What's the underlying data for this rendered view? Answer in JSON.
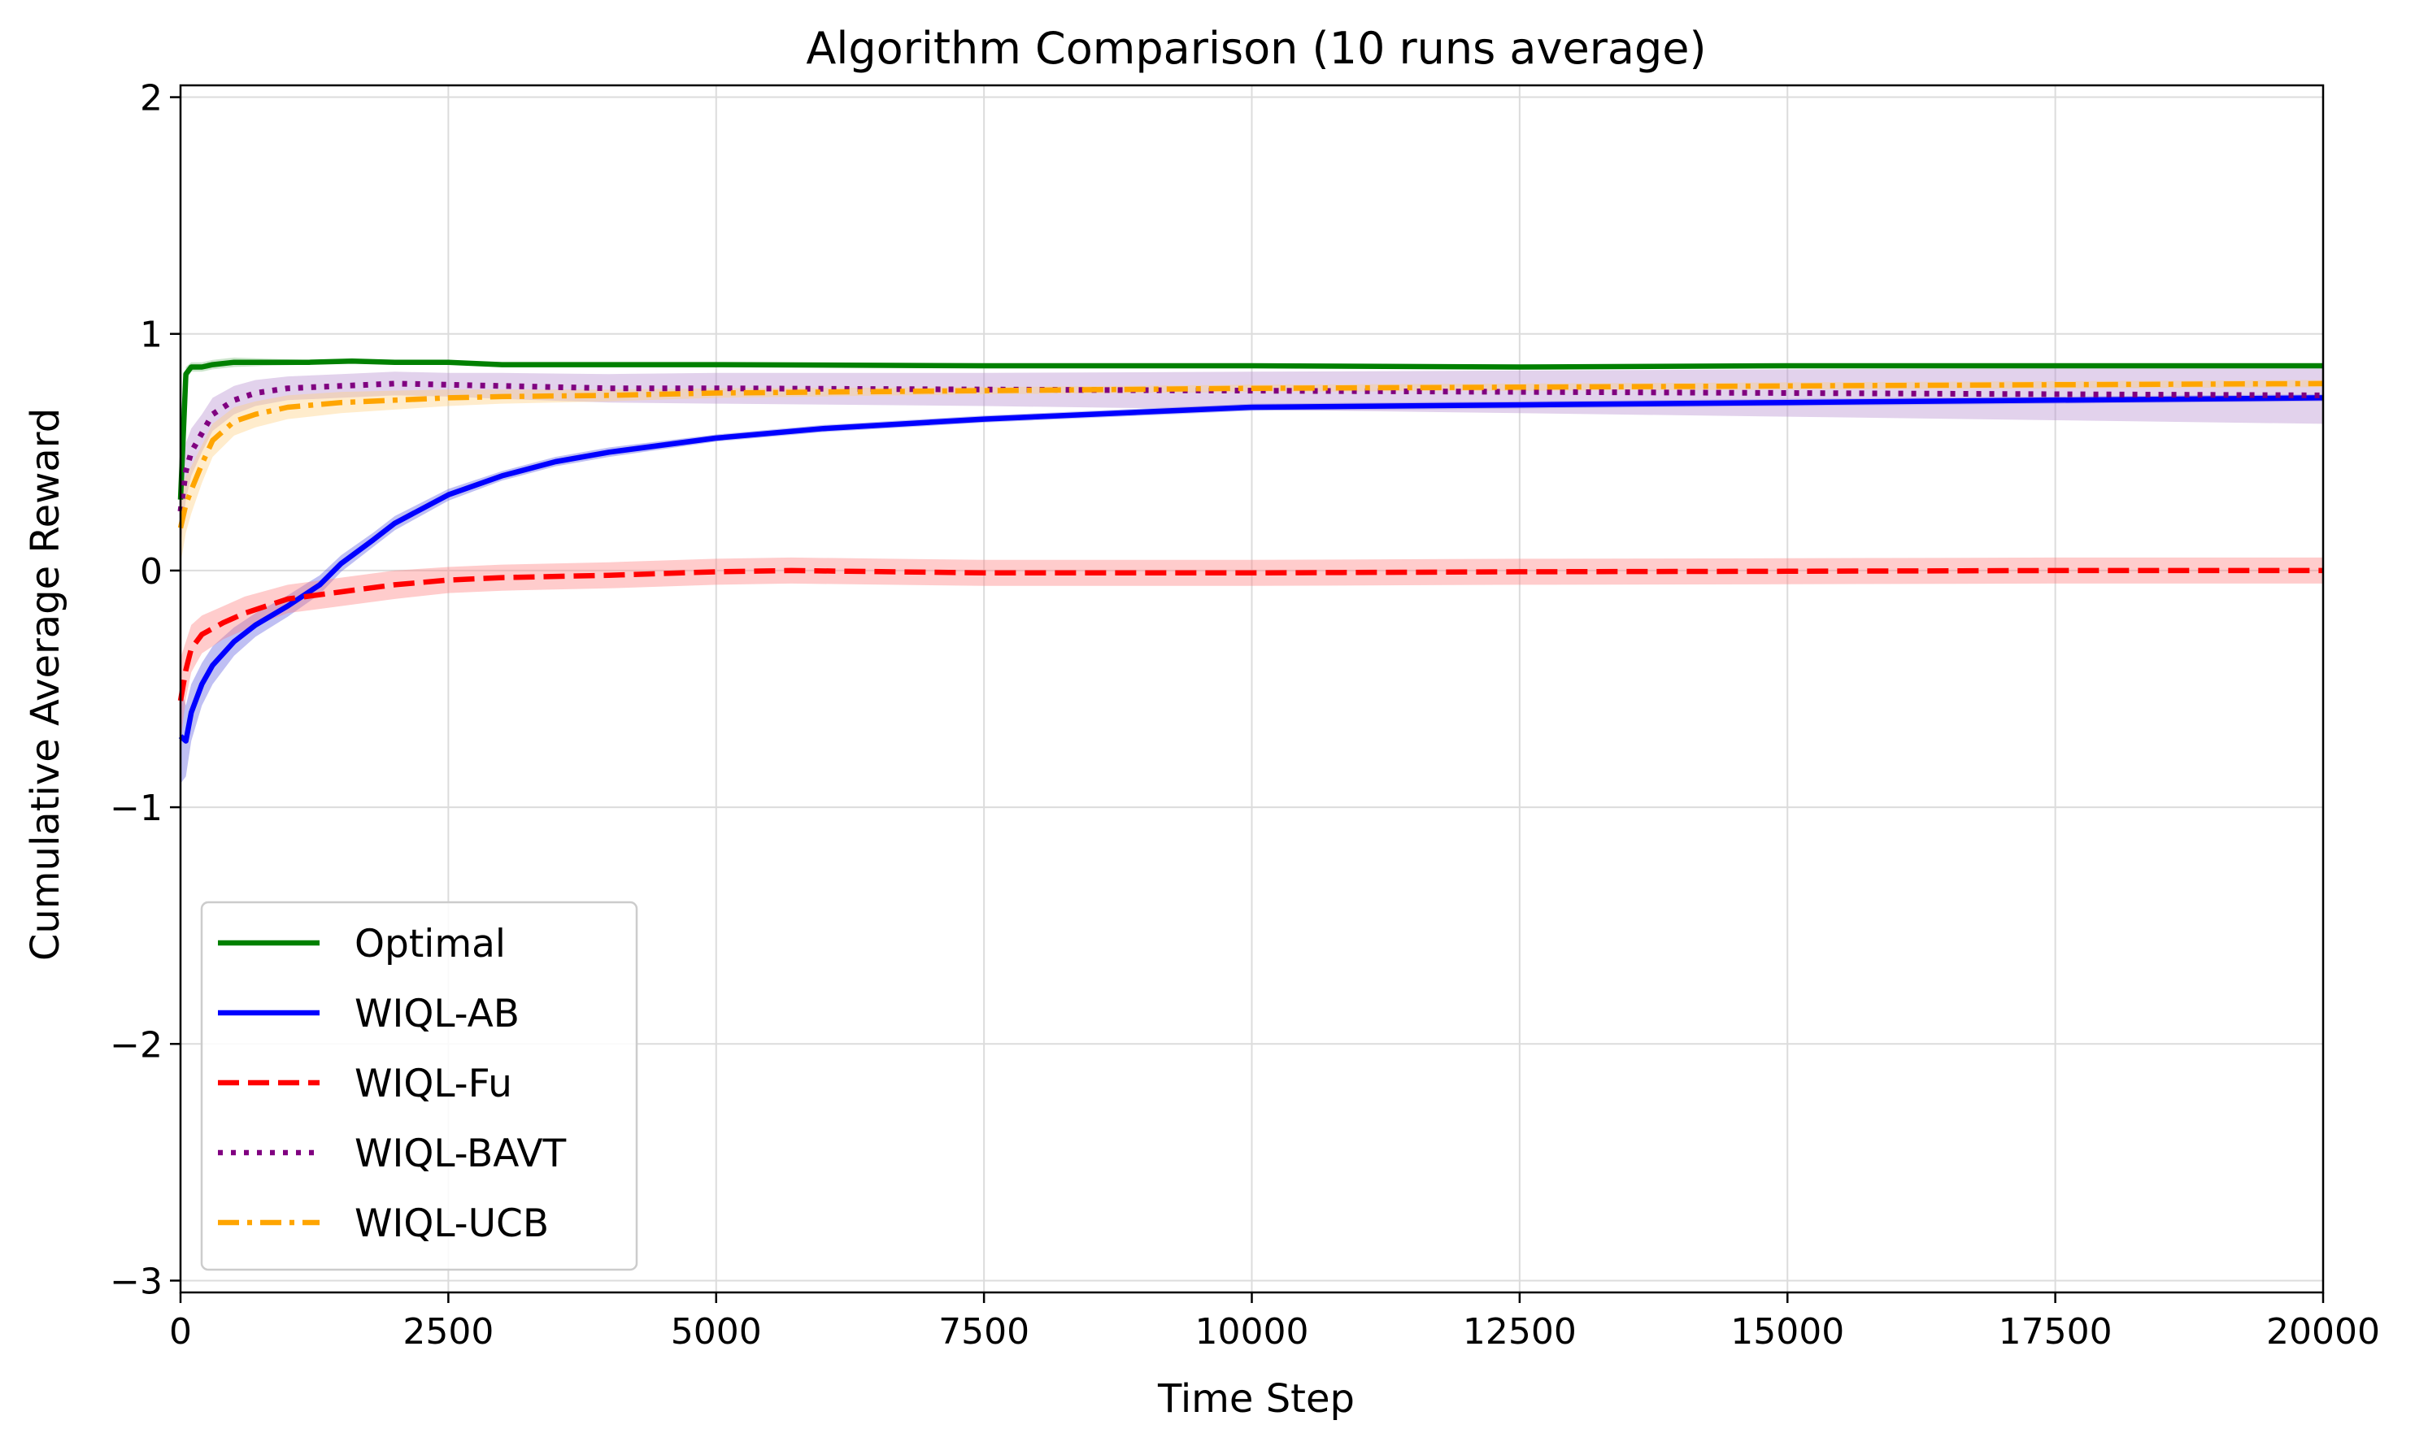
{
  "chart_data": {
    "type": "line",
    "title": "Algorithm Comparison (10 runs average)",
    "xlabel": "Time Step",
    "ylabel": "Cumulative Average Reward",
    "xlim": [
      0,
      20000
    ],
    "ylim": [
      -3.05,
      2.05
    ],
    "xticks": [
      0,
      2500,
      5000,
      7500,
      10000,
      12500,
      15000,
      17500,
      20000
    ],
    "xtick_labels": [
      "0",
      "2500",
      "5000",
      "7500",
      "10000",
      "12500",
      "15000",
      "17500",
      "20000"
    ],
    "yticks": [
      -3,
      -2,
      -1,
      0,
      1,
      2
    ],
    "ytick_labels": [
      "−3",
      "−2",
      "−1",
      "0",
      "1",
      "2"
    ],
    "grid": true,
    "legend_position": "lower-left",
    "series": [
      {
        "name": "Optimal",
        "color": "#008000",
        "style": "solid",
        "band_color": "#7fbf7f",
        "x": [
          0,
          50,
          100,
          200,
          300,
          500,
          800,
          1200,
          1600,
          2000,
          2500,
          3000,
          4000,
          5000,
          7500,
          10000,
          12500,
          15000,
          17500,
          20000
        ],
        "y": [
          0.3,
          0.83,
          0.86,
          0.86,
          0.87,
          0.88,
          0.88,
          0.88,
          0.885,
          0.88,
          0.88,
          0.87,
          0.87,
          0.87,
          0.865,
          0.865,
          0.86,
          0.865,
          0.865,
          0.865
        ],
        "band": [
          0.04,
          0.03,
          0.02,
          0.02,
          0.02,
          0.02,
          0.015,
          0.01,
          0.01,
          0.01,
          0.01,
          0.01,
          0.01,
          0.01,
          0.01,
          0.01,
          0.01,
          0.01,
          0.01,
          0.01
        ]
      },
      {
        "name": "WIQL-AB",
        "color": "#0000ff",
        "style": "solid",
        "band_color": "#6060e0",
        "x": [
          0,
          50,
          100,
          200,
          300,
          500,
          700,
          1000,
          1300,
          1500,
          1800,
          2000,
          2500,
          3000,
          3500,
          4000,
          5000,
          6000,
          7500,
          9000,
          10000,
          12500,
          15000,
          17500,
          20000
        ],
        "y": [
          -0.7,
          -0.72,
          -0.6,
          -0.48,
          -0.4,
          -0.3,
          -0.23,
          -0.15,
          -0.06,
          0.03,
          0.13,
          0.2,
          0.32,
          0.4,
          0.46,
          0.5,
          0.56,
          0.6,
          0.64,
          0.67,
          0.69,
          0.7,
          0.71,
          0.72,
          0.73
        ],
        "band": [
          0.2,
          0.15,
          0.12,
          0.09,
          0.08,
          0.06,
          0.05,
          0.045,
          0.04,
          0.035,
          0.03,
          0.03,
          0.025,
          0.02,
          0.02,
          0.02,
          0.015,
          0.015,
          0.015,
          0.015,
          0.015,
          0.015,
          0.015,
          0.015,
          0.015
        ]
      },
      {
        "name": "WIQL-Fu",
        "color": "#ff0000",
        "style": "dashed",
        "band_color": "#ff8080",
        "x": [
          0,
          50,
          100,
          200,
          400,
          600,
          1000,
          1500,
          2000,
          2500,
          3000,
          4000,
          5000,
          5700,
          7500,
          10000,
          12500,
          15000,
          17500,
          20000
        ],
        "y": [
          -0.55,
          -0.42,
          -0.33,
          -0.27,
          -0.22,
          -0.18,
          -0.12,
          -0.09,
          -0.06,
          -0.04,
          -0.03,
          -0.02,
          -0.005,
          0.0,
          -0.01,
          -0.01,
          -0.005,
          -0.003,
          0.0,
          0.0
        ],
        "band": [
          0.18,
          0.12,
          0.1,
          0.08,
          0.07,
          0.07,
          0.06,
          0.06,
          0.06,
          0.055,
          0.055,
          0.055,
          0.055,
          0.055,
          0.055,
          0.055,
          0.055,
          0.055,
          0.055,
          0.055
        ]
      },
      {
        "name": "WIQL-BAVT",
        "color": "#800080",
        "style": "dotted",
        "band_color": "#b78fd0",
        "x": [
          0,
          50,
          100,
          200,
          300,
          500,
          700,
          1000,
          1500,
          2000,
          2500,
          3000,
          4000,
          5000,
          7500,
          10000,
          12500,
          15000,
          17500,
          20000
        ],
        "y": [
          0.25,
          0.42,
          0.5,
          0.58,
          0.66,
          0.72,
          0.75,
          0.77,
          0.78,
          0.79,
          0.785,
          0.78,
          0.77,
          0.77,
          0.765,
          0.76,
          0.755,
          0.75,
          0.745,
          0.74
        ],
        "band": [
          0.15,
          0.12,
          0.1,
          0.08,
          0.07,
          0.06,
          0.055,
          0.05,
          0.05,
          0.05,
          0.05,
          0.055,
          0.06,
          0.065,
          0.07,
          0.08,
          0.09,
          0.1,
          0.11,
          0.12
        ]
      },
      {
        "name": "WIQL-UCB",
        "color": "#ffa500",
        "style": "dashdot",
        "band_color": "#ffd080",
        "x": [
          0,
          50,
          100,
          200,
          300,
          500,
          700,
          1000,
          1500,
          2000,
          2500,
          3000,
          4000,
          5000,
          7500,
          10000,
          12500,
          15000,
          17500,
          20000
        ],
        "y": [
          0.18,
          0.28,
          0.34,
          0.45,
          0.55,
          0.63,
          0.66,
          0.69,
          0.71,
          0.72,
          0.73,
          0.735,
          0.74,
          0.75,
          0.76,
          0.77,
          0.775,
          0.78,
          0.785,
          0.79
        ],
        "band": [
          0.15,
          0.12,
          0.1,
          0.08,
          0.07,
          0.06,
          0.055,
          0.05,
          0.045,
          0.04,
          0.035,
          0.03,
          0.025,
          0.02,
          0.015,
          0.015,
          0.015,
          0.015,
          0.015,
          0.015
        ]
      }
    ]
  }
}
